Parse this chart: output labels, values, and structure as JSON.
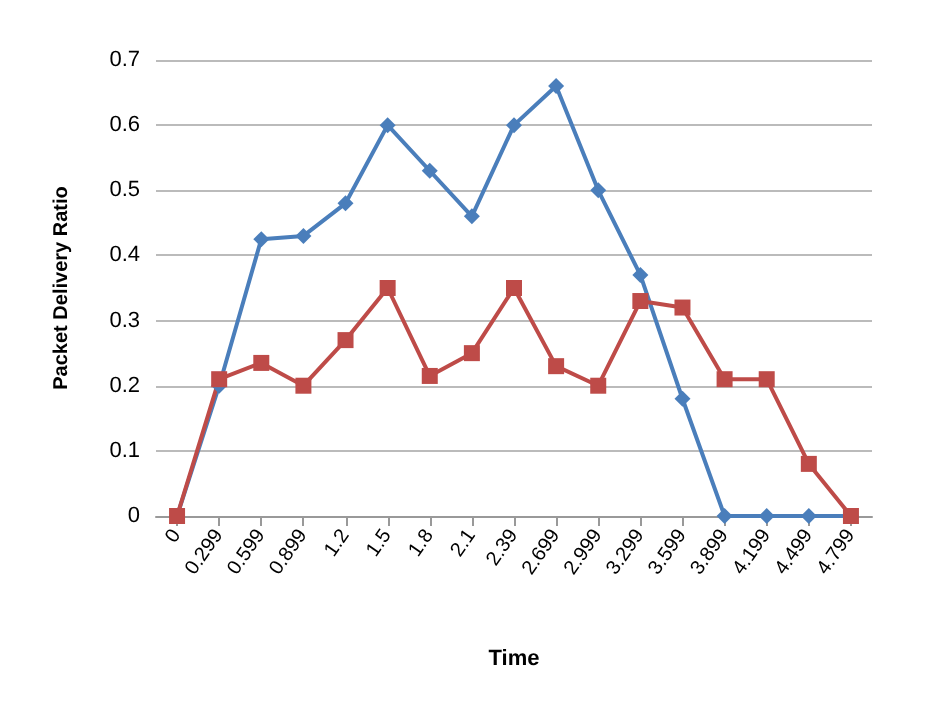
{
  "chart_data": {
    "type": "line",
    "xlabel": "Time",
    "ylabel": "Packet Delivery Ratio",
    "categories": [
      "0",
      "0.299",
      "0.599",
      "0.899",
      "1.2",
      "1.5",
      "1.8",
      "2.1",
      "2.39",
      "2.699",
      "2.999",
      "3.299",
      "3.599",
      "3.899",
      "4.199",
      "4.499",
      "4.799"
    ],
    "series": [
      {
        "color": "#4a7ebb",
        "marker": "diamond",
        "values": [
          0,
          0.2,
          0.425,
          0.43,
          0.48,
          0.6,
          0.53,
          0.46,
          0.6,
          0.66,
          0.5,
          0.37,
          0.18,
          0,
          0,
          0,
          0
        ]
      },
      {
        "color": "#be4b48",
        "marker": "square",
        "values": [
          0,
          0.21,
          0.235,
          0.2,
          0.27,
          0.35,
          0.215,
          0.25,
          0.35,
          0.23,
          0.2,
          0.33,
          0.32,
          0.21,
          0.21,
          0.08,
          0
        ]
      }
    ],
    "ylim": [
      0,
      0.7
    ],
    "yticks": [
      0,
      0.1,
      0.2,
      0.3,
      0.4,
      0.5,
      0.6,
      0.7
    ],
    "grid": "y"
  }
}
